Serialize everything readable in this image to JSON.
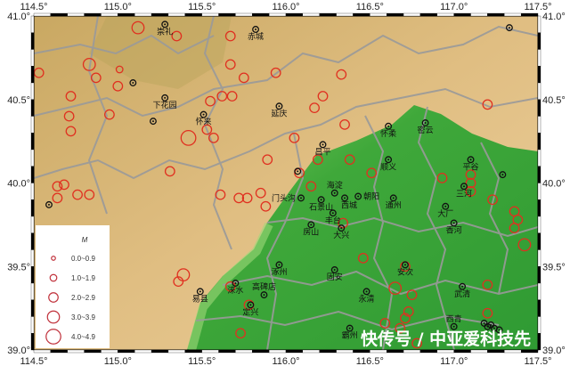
{
  "map": {
    "extent": {
      "lon": [
        114.5,
        117.5
      ],
      "lat": [
        39.0,
        41.0
      ]
    },
    "lon_ticks": [
      "114.5°",
      "115.0°",
      "115.5°",
      "116.0°",
      "116.5°",
      "117.0°",
      "117.5°"
    ],
    "lat_ticks": [
      "41.0°",
      "40.5°",
      "40.0°",
      "39.5°",
      "39.0°"
    ],
    "colors": {
      "lowland": "#3fa83a",
      "plain_edge": "#8fd06a",
      "mountain": "#d9b77a",
      "boundary": "#9a9a9a",
      "event": "#e03020"
    }
  },
  "legend": {
    "title": "M",
    "items": [
      {
        "label": "0.0~0.9",
        "mag": 0.5
      },
      {
        "label": "1.0~1.9",
        "mag": 1.5
      },
      {
        "label": "2.0~2.9",
        "mag": 2.5
      },
      {
        "label": "3.0~3.9",
        "mag": 3.5
      },
      {
        "label": "4.0~4.9",
        "mag": 4.5
      }
    ]
  },
  "cities": [
    {
      "name": "崇礼",
      "lon": 115.28,
      "lat": 40.95
    },
    {
      "name": "赤城",
      "lon": 115.82,
      "lat": 40.92
    },
    {
      "name": "下花园",
      "lon": 115.28,
      "lat": 40.51
    },
    {
      "name": "怀来",
      "lon": 115.51,
      "lat": 40.41
    },
    {
      "name": "延庆",
      "lon": 115.96,
      "lat": 40.46
    },
    {
      "name": "怀柔",
      "lon": 116.61,
      "lat": 40.34
    },
    {
      "name": "密云",
      "lon": 116.83,
      "lat": 40.36
    },
    {
      "name": "昌平",
      "lon": 116.22,
      "lat": 40.23
    },
    {
      "name": "顺义",
      "lon": 116.61,
      "lat": 40.14
    },
    {
      "name": "平谷",
      "lon": 117.1,
      "lat": 40.14
    },
    {
      "name": "门头沟",
      "lon": 116.09,
      "lat": 39.91
    },
    {
      "name": "石景山",
      "lon": 116.21,
      "lat": 39.9
    },
    {
      "name": "海淀",
      "lon": 116.29,
      "lat": 39.94
    },
    {
      "name": "西城",
      "lon": 116.35,
      "lat": 39.91
    },
    {
      "name": "朝阳",
      "lon": 116.43,
      "lat": 39.92
    },
    {
      "name": "丰台",
      "lon": 116.28,
      "lat": 39.82
    },
    {
      "name": "通州",
      "lon": 116.64,
      "lat": 39.91
    },
    {
      "name": "房山",
      "lon": 116.15,
      "lat": 39.75
    },
    {
      "name": "大兴",
      "lon": 116.33,
      "lat": 39.73
    },
    {
      "name": "三河",
      "lon": 117.06,
      "lat": 39.98
    },
    {
      "name": "大厂",
      "lon": 116.95,
      "lat": 39.86
    },
    {
      "name": "香河",
      "lon": 117.0,
      "lat": 39.76
    },
    {
      "name": "涿州",
      "lon": 115.96,
      "lat": 39.51
    },
    {
      "name": "固安",
      "lon": 116.29,
      "lat": 39.48
    },
    {
      "name": "安次",
      "lon": 116.71,
      "lat": 39.51
    },
    {
      "name": "永清",
      "lon": 116.48,
      "lat": 39.35
    },
    {
      "name": "武清",
      "lon": 117.05,
      "lat": 39.38
    },
    {
      "name": "涞水",
      "lon": 115.7,
      "lat": 39.4
    },
    {
      "name": "易县",
      "lon": 115.49,
      "lat": 39.35
    },
    {
      "name": "高碑店",
      "lon": 115.87,
      "lat": 39.33
    },
    {
      "name": "定兴",
      "lon": 115.79,
      "lat": 39.27
    },
    {
      "name": "霸州",
      "lon": 116.38,
      "lat": 39.13
    },
    {
      "name": "西青",
      "lon": 117.0,
      "lat": 39.14
    }
  ],
  "unlabeled_stations": [
    [
      115.21,
      40.37
    ],
    [
      115.09,
      40.6
    ],
    [
      114.59,
      39.87
    ],
    [
      117.33,
      40.93
    ],
    [
      117.29,
      40.05
    ],
    [
      117.18,
      39.16
    ],
    [
      117.2,
      39.14
    ],
    [
      117.22,
      39.15
    ],
    [
      117.24,
      39.13
    ],
    [
      117.27,
      39.12
    ],
    [
      116.07,
      40.07
    ]
  ],
  "events": [
    [
      115.12,
      40.93,
      3.5
    ],
    [
      115.35,
      40.88,
      2.5
    ],
    [
      115.67,
      40.88,
      2.5
    ],
    [
      115.67,
      40.71,
      2.5
    ],
    [
      115.75,
      40.63,
      2.5
    ],
    [
      115.94,
      40.66,
      2.5
    ],
    [
      116.33,
      40.65,
      2.5
    ],
    [
      114.83,
      40.71,
      3.5
    ],
    [
      114.53,
      40.66,
      2.5
    ],
    [
      114.87,
      40.63,
      2.5
    ],
    [
      115.0,
      40.58,
      2.5
    ],
    [
      114.72,
      40.52,
      2.5
    ],
    [
      114.71,
      40.4,
      2.5
    ],
    [
      114.72,
      40.31,
      2.5
    ],
    [
      114.95,
      40.41,
      2.5
    ],
    [
      115.62,
      40.52,
      2.5
    ],
    [
      115.68,
      40.52,
      2.5
    ],
    [
      115.55,
      40.49,
      2.5
    ],
    [
      116.17,
      40.45,
      2.5
    ],
    [
      116.22,
      40.52,
      2.5
    ],
    [
      116.35,
      40.35,
      2.5
    ],
    [
      115.42,
      40.27,
      4.5
    ],
    [
      115.53,
      40.32,
      2.5
    ],
    [
      115.57,
      40.27,
      2.5
    ],
    [
      115.31,
      40.07,
      2.5
    ],
    [
      115.89,
      40.14,
      2.5
    ],
    [
      116.05,
      40.27,
      2.5
    ],
    [
      114.68,
      39.99,
      2.5
    ],
    [
      114.64,
      39.98,
      2.5
    ],
    [
      114.76,
      39.93,
      2.5
    ],
    [
      114.83,
      39.93,
      2.5
    ],
    [
      114.64,
      39.91,
      2.5
    ],
    [
      115.61,
      39.93,
      2.5
    ],
    [
      115.72,
      39.91,
      2.5
    ],
    [
      115.77,
      39.91,
      2.5
    ],
    [
      115.85,
      39.94,
      2.5
    ],
    [
      115.88,
      39.86,
      2.5
    ],
    [
      116.08,
      40.06,
      2.5
    ],
    [
      116.15,
      39.98,
      2.5
    ],
    [
      116.19,
      40.14,
      2.5
    ],
    [
      116.38,
      40.14,
      2.5
    ],
    [
      116.51,
      40.06,
      2.5
    ],
    [
      116.93,
      40.03,
      2.5
    ],
    [
      117.1,
      40.05,
      2.5
    ],
    [
      117.1,
      40.0,
      2.5
    ],
    [
      117.1,
      39.95,
      2.5
    ],
    [
      117.23,
      39.9,
      2.5
    ],
    [
      117.36,
      39.83,
      2.5
    ],
    [
      117.38,
      39.78,
      2.5
    ],
    [
      117.36,
      39.73,
      2.5
    ],
    [
      117.42,
      39.63,
      3.5
    ],
    [
      116.34,
      39.76,
      2.5
    ],
    [
      115.39,
      39.45,
      3.5
    ],
    [
      115.36,
      39.41,
      2.5
    ],
    [
      115.67,
      39.38,
      2.5
    ],
    [
      115.78,
      39.27,
      2.5
    ],
    [
      115.73,
      39.1,
      2.5
    ],
    [
      116.46,
      39.55,
      2.5
    ],
    [
      116.71,
      39.5,
      2.5
    ],
    [
      116.65,
      39.37,
      3.5
    ],
    [
      116.75,
      39.33,
      2.5
    ],
    [
      116.73,
      39.23,
      2.5
    ],
    [
      116.71,
      39.19,
      2.5
    ],
    [
      116.68,
      39.13,
      2.5
    ],
    [
      116.59,
      39.16,
      2.5
    ],
    [
      117.2,
      39.39,
      2.5
    ],
    [
      117.2,
      39.22,
      2.5
    ],
    [
      116.78,
      39.04,
      2.5
    ],
    [
      117.2,
      40.47,
      2.5
    ],
    [
      115.01,
      40.68,
      1.5
    ]
  ],
  "watermark": "快传号 / 中亚爱科技先"
}
